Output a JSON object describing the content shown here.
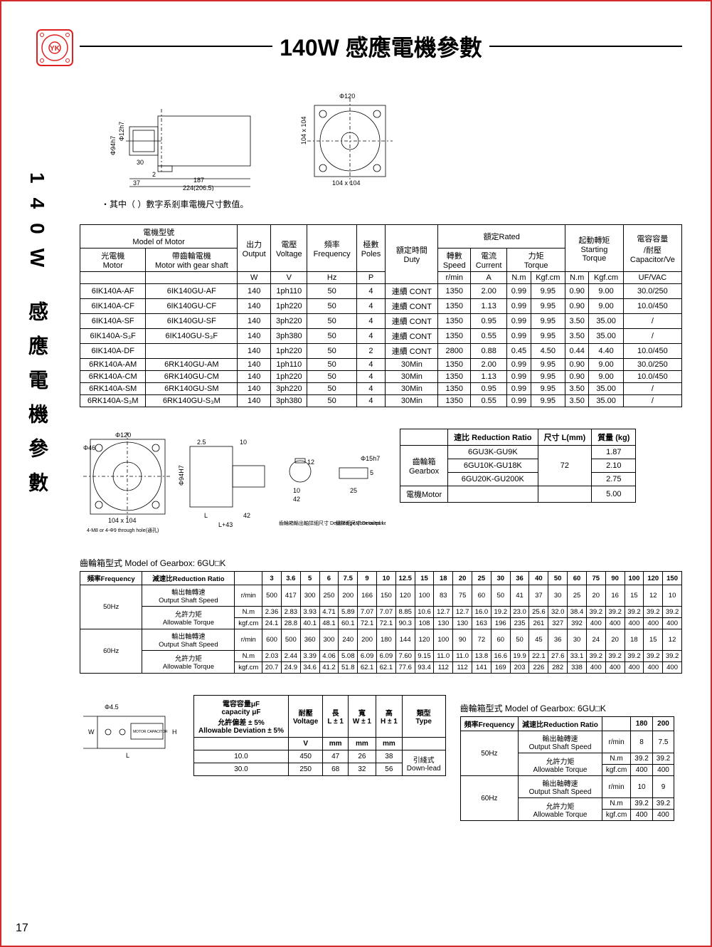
{
  "page_number": "17",
  "vertical_label": "140W 感應電機參數",
  "title": "140W 感應電機參數",
  "diagram_note": "・其中（ ）數字系剎車電機尺寸數值。",
  "front_diagram": {
    "phi": "Φ120",
    "face": "104 x 104"
  },
  "side_diagram": {
    "d1": "Φ94h7",
    "d2": "Φ12h7",
    "l1": "30",
    "l2": "2",
    "l3": "37",
    "l4": "187",
    "l5": "224(206.5)",
    "h1": "104 x 104"
  },
  "motor_headers": {
    "model": "電機型號\nModel of Motor",
    "light": "光電機\nMotor",
    "gear": "帶齒輪電機\nMotor with gear shaft",
    "output": "出力\nOutput",
    "voltage": "電壓\nVoltage",
    "freq": "頻率\nFrequency",
    "poles": "極數\nPoles",
    "duty": "額定時間\nDuty",
    "rated": "額定Rated",
    "speed": "轉數\nSpeed",
    "current": "電流\nCurrent",
    "torque": "力矩\nTorque",
    "start": "起動轉矩\nStarting\nTorque",
    "cap": "電容容量\n/耐壓\nCapacitor/Ve",
    "u_w": "W",
    "u_v": "V",
    "u_hz": "Hz",
    "u_p": "P",
    "u_rmin": "r/min",
    "u_a": "A",
    "u_nm": "N.m",
    "u_kgfcm": "Kgf.cm",
    "u_nm2": "N.m",
    "u_kgfcm2": "Kgf.cm",
    "u_uf": "UF/VAC"
  },
  "motor_rows": [
    [
      "6IK140A-AF",
      "6IK140GU-AF",
      "140",
      "1ph110",
      "50",
      "4",
      "連續 CONT",
      "1350",
      "2.00",
      "0.99",
      "9.95",
      "0.90",
      "9.00",
      "30.0/250"
    ],
    [
      "6IK140A-CF",
      "6IK140GU-CF",
      "140",
      "1ph220",
      "50",
      "4",
      "連續 CONT",
      "1350",
      "1.13",
      "0.99",
      "9.95",
      "0.90",
      "9.00",
      "10.0/450"
    ],
    [
      "6IK140A-SF",
      "6IK140GU-SF",
      "140",
      "3ph220",
      "50",
      "4",
      "連續 CONT",
      "1350",
      "0.95",
      "0.99",
      "9.95",
      "3.50",
      "35.00",
      "/"
    ],
    [
      "6IK140A-S₃F",
      "6IK140GU-S₃F",
      "140",
      "3ph380",
      "50",
      "4",
      "連續 CONT",
      "1350",
      "0.55",
      "0.99",
      "9.95",
      "3.50",
      "35.00",
      "/"
    ],
    [
      "6IK140A-DF",
      "",
      "140",
      "1ph220",
      "50",
      "2",
      "連續 CONT",
      "2800",
      "0.88",
      "0.45",
      "4.50",
      "0.44",
      "4.40",
      "10.0/450"
    ],
    [
      "6RK140A-AM",
      "6RK140GU-AM",
      "140",
      "1ph110",
      "50",
      "4",
      "30Min",
      "1350",
      "2.00",
      "0.99",
      "9.95",
      "0.90",
      "9.00",
      "30.0/250"
    ],
    [
      "6RK140A-CM",
      "6RK140GU-CM",
      "140",
      "1ph220",
      "50",
      "4",
      "30Min",
      "1350",
      "1.13",
      "0.99",
      "9.95",
      "0.90",
      "9.00",
      "10.0/450"
    ],
    [
      "6RK140A-SM",
      "6RK140GU-SM",
      "140",
      "3ph220",
      "50",
      "4",
      "30Min",
      "1350",
      "0.95",
      "0.99",
      "9.95",
      "3.50",
      "35.00",
      "/"
    ],
    [
      "6RK140A-S₃M",
      "6RK140GU-S₃M",
      "140",
      "3ph380",
      "50",
      "4",
      "30Min",
      "1350",
      "0.55",
      "0.99",
      "9.95",
      "3.50",
      "35.00",
      "/"
    ]
  ],
  "gearbox_diagram": {
    "phi": "Φ120",
    "phi2": "Φ46",
    "face": "104 x 104",
    "note1": "4-M8 or 4-Φ9 through hole(通孔)",
    "L": "L",
    "Lp": "L+43",
    "d42": "42",
    "d25": "25",
    "d10": "10",
    "d12": "12",
    "d2p5": "2.5",
    "note2": "齒輪箱輸出軸詳細尺寸\nDetailed gearbox output shaft dimension",
    "note3": "鍵詳細尺寸\nDetailed key dimension"
  },
  "gb_headers": [
    "",
    "速比 Reduction Ratio",
    "尺寸 L(mm)",
    "質量 (kg)"
  ],
  "gb_rows": [
    [
      "齒輪箱\nGearbox",
      "6GU3K-GU9K",
      "72",
      "1.87"
    ],
    [
      "",
      "6GU10K-GU18K",
      "",
      "2.10"
    ],
    [
      "",
      "6GU20K-GU200K",
      "",
      "2.75"
    ],
    [
      "電機Motor",
      "",
      "",
      "5.00"
    ]
  ],
  "gearbox_model_label": "齒輪箱型式 Model of Gearbox: 6GU□K",
  "ratio_headers": [
    "頻率Frequency",
    "減速比Reduction Ratio",
    "",
    "3",
    "3.6",
    "5",
    "6",
    "7.5",
    "9",
    "10",
    "12.5",
    "15",
    "18",
    "20",
    "25",
    "30",
    "36",
    "40",
    "50",
    "60",
    "75",
    "90",
    "100",
    "120",
    "150"
  ],
  "ratio_groups": [
    {
      "freq": "50Hz",
      "rows": [
        [
          "輸出軸轉速\nOutput Shaft Speed",
          "r/min",
          "500",
          "417",
          "300",
          "250",
          "200",
          "166",
          "150",
          "120",
          "100",
          "83",
          "75",
          "60",
          "50",
          "41",
          "37",
          "30",
          "25",
          "20",
          "16",
          "15",
          "12",
          "10"
        ],
        [
          "允許力矩\nAllowable Torque",
          "N.m",
          "2.36",
          "2.83",
          "3.93",
          "4.71",
          "5.89",
          "7.07",
          "7.07",
          "8.85",
          "10.6",
          "12.7",
          "12.7",
          "16.0",
          "19.2",
          "23.0",
          "25.6",
          "32.0",
          "38.4",
          "39.2",
          "39.2",
          "39.2",
          "39.2",
          "39.2"
        ],
        [
          "",
          "kgf.cm",
          "24.1",
          "28.8",
          "40.1",
          "48.1",
          "60.1",
          "72.1",
          "72.1",
          "90.3",
          "108",
          "130",
          "130",
          "163",
          "196",
          "235",
          "261",
          "327",
          "392",
          "400",
          "400",
          "400",
          "400",
          "400"
        ]
      ]
    },
    {
      "freq": "60Hz",
      "rows": [
        [
          "輸出軸轉速\nOutput Shaft Speed",
          "r/min",
          "600",
          "500",
          "360",
          "300",
          "240",
          "200",
          "180",
          "144",
          "120",
          "100",
          "90",
          "72",
          "60",
          "50",
          "45",
          "36",
          "30",
          "24",
          "20",
          "18",
          "15",
          "12"
        ],
        [
          "允許力矩\nAllowable Torque",
          "N.m",
          "2.03",
          "2.44",
          "3.39",
          "4.06",
          "5.08",
          "6.09",
          "6.09",
          "7.60",
          "9.15",
          "11.0",
          "11.0",
          "13.8",
          "16.6",
          "19.9",
          "22.1",
          "27.6",
          "33.1",
          "39.2",
          "39.2",
          "39.2",
          "39.2",
          "39.2"
        ],
        [
          "",
          "kgf.cm",
          "20.7",
          "24.9",
          "34.6",
          "41.2",
          "51.8",
          "62.1",
          "62.1",
          "77.6",
          "93.4",
          "112",
          "112",
          "141",
          "169",
          "203",
          "226",
          "282",
          "338",
          "400",
          "400",
          "400",
          "400",
          "400"
        ]
      ]
    }
  ],
  "cap_headers": [
    "電容容量μF\ncapacity μF\n允許偏差 ± 5%\nAllowable Deviation ± 5%",
    "耐壓\nVoltage",
    "長\nL ± 1",
    "寬\nW ± 1",
    "高\nH ± 1",
    "類型\nType"
  ],
  "cap_units": [
    "",
    "V",
    "mm",
    "mm",
    "mm",
    ""
  ],
  "cap_rows": [
    [
      "10.0",
      "450",
      "47",
      "26",
      "38",
      "引綫式\nDown-lead"
    ],
    [
      "30.0",
      "250",
      "68",
      "32",
      "56",
      ""
    ]
  ],
  "cap_diag": {
    "phi": "Φ4.5",
    "label": "MOTOR CAPACITOR"
  },
  "ratio2_headers": [
    "頻率Frequency",
    "減速比Reduction Ratio",
    "",
    "180",
    "200"
  ],
  "ratio2_groups": [
    {
      "freq": "50Hz",
      "rows": [
        [
          "輸出軸轉速\nOutput Shaft Speed",
          "r/min",
          "8",
          "7.5"
        ],
        [
          "允許力矩\nAllowable Torque",
          "N.m",
          "39.2",
          "39.2"
        ],
        [
          "",
          "kgf.cm",
          "400",
          "400"
        ]
      ]
    },
    {
      "freq": "60Hz",
      "rows": [
        [
          "輸出軸轉速\nOutput Shaft Speed",
          "r/min",
          "10",
          "9"
        ],
        [
          "允許力矩\nAllowable Torque",
          "N.m",
          "39.2",
          "39.2"
        ],
        [
          "",
          "kgf.cm",
          "400",
          "400"
        ]
      ]
    }
  ]
}
